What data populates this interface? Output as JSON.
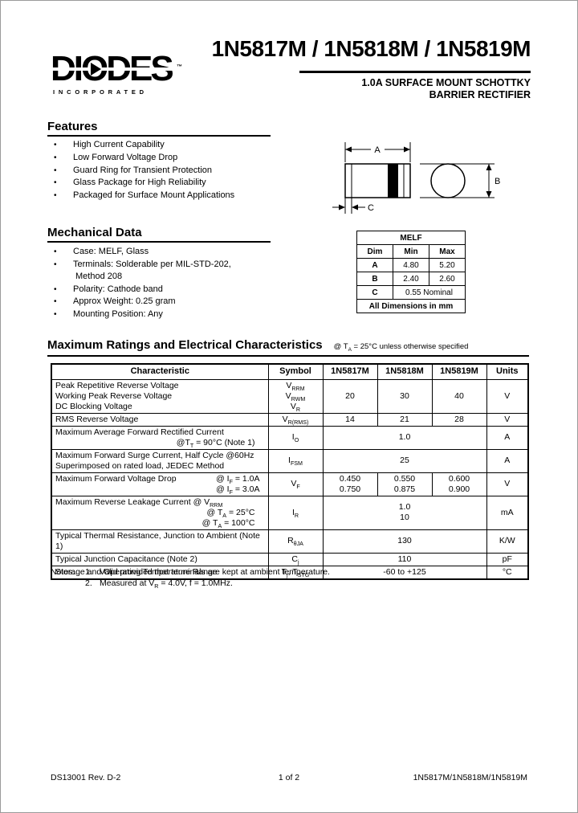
{
  "header": {
    "logo_text": "DIODES",
    "logo_tm": "™",
    "logo_sub": "INCORPORATED",
    "title": "1N5817M / 1N5818M / 1N5819M",
    "subtitle1": "1.0A SURFACE MOUNT SCHOTTKY",
    "subtitle2": "BARRIER RECTIFIER"
  },
  "features": {
    "heading": "Features",
    "items": [
      "High Current Capability",
      "Low Forward Voltage Drop",
      "Guard Ring for Transient Protection",
      "Glass Package for High Reliability",
      "Packaged for Surface Mount Applications"
    ]
  },
  "diagram": {
    "label_a": "A",
    "label_b": "B",
    "label_c": "C"
  },
  "mechanical": {
    "heading": "Mechanical Data",
    "items": [
      [
        "Case: MELF, Glass"
      ],
      [
        "Terminals: Solderable per MIL-STD-202,",
        "Method 208"
      ],
      [
        "Polarity: Cathode band"
      ],
      [
        "Approx Weight: 0.25 gram"
      ],
      [
        "Mounting Position: Any"
      ]
    ]
  },
  "melf_table": {
    "title": "MELF",
    "headers": [
      "Dim",
      "Min",
      "Max"
    ],
    "rows": [
      {
        "dim": "A",
        "min": "4.80",
        "max": "5.20"
      },
      {
        "dim": "B",
        "min": "2.40",
        "max": "2.60"
      },
      {
        "dim": "C",
        "span": "0.55 Nominal"
      }
    ],
    "footer": "All Dimensions in mm"
  },
  "ratings": {
    "heading": "Maximum Ratings and Electrical Characteristics",
    "condition": "@ T~A~ = 25°C unless otherwise specified",
    "headers": [
      "Characteristic",
      "Symbol",
      "1N5817M",
      "1N5818M",
      "1N5819M",
      "Units"
    ],
    "rows": [
      {
        "main": [
          "Peak Repetitive Reverse Voltage",
          "Working Peak Reverse Voltage",
          "DC Blocking Voltage"
        ],
        "symbol": [
          "V~RRM~",
          "V~RWM~",
          "V~R~"
        ],
        "values": [
          [
            "20"
          ],
          [
            "30"
          ],
          [
            "40"
          ]
        ],
        "units": "V"
      },
      {
        "main": [
          "RMS Reverse Voltage"
        ],
        "symbol": [
          "V~R(RMS)~"
        ],
        "values": [
          [
            "14"
          ],
          [
            "21"
          ],
          [
            "28"
          ]
        ],
        "units": "V"
      },
      {
        "main": [
          "Maximum Average Forward Rectified Current"
        ],
        "conds": [
          "@T~T~ = 90°C  (Note 1)"
        ],
        "symbol": [
          "I~O~"
        ],
        "span_value": [
          "1.0"
        ],
        "units": "A"
      },
      {
        "main": [
          "Maximum Forward Surge Current, Half Cycle @60Hz",
          "Superimposed on rated load, JEDEC Method"
        ],
        "symbol": [
          "I~FSM~"
        ],
        "span_value": [
          "25"
        ],
        "units": "A"
      },
      {
        "main": [
          "Maximum Forward Voltage Drop"
        ],
        "conds": [
          "@ I~F~ = 1.0A",
          "@ I~F~ = 3.0A"
        ],
        "float_layout": true,
        "symbol": [
          "V~F~"
        ],
        "values": [
          [
            "0.450",
            "0.750"
          ],
          [
            "0.550",
            "0.875"
          ],
          [
            "0.600",
            "0.900"
          ]
        ],
        "units": "V"
      },
      {
        "main": [
          "Maximum Reverse Leakage Current @ V~RRM~"
        ],
        "conds": [
          "@ T~A~ =  25°C",
          "@ T~A~ = 100°C"
        ],
        "symbol": [
          "I~R~"
        ],
        "span_value": [
          "1.0",
          "10"
        ],
        "units": "mA"
      },
      {
        "main": [
          "Typical Thermal Resistance, Junction to Ambient (Note 1)"
        ],
        "symbol": [
          "R~θJA~"
        ],
        "span_value": [
          "130"
        ],
        "units": "K/W"
      },
      {
        "main": [
          "Typical Junction Capacitance (Note 2)"
        ],
        "symbol": [
          "C~j~"
        ],
        "span_value": [
          "110"
        ],
        "units": "pF"
      },
      {
        "main": [
          "Storage and Operating Temperature Range"
        ],
        "symbol": [
          "T~j~, T~STG~"
        ],
        "span_value": [
          "-60 to +125"
        ],
        "units": "°C"
      }
    ]
  },
  "notes": {
    "label": "Notes:",
    "items": [
      {
        "num": "1.",
        "text": "Valid provided that terminals are kept at ambient temperature."
      },
      {
        "num": "2.",
        "text": "Measured at V~R~ = 4.0V, f = 1.0MHz."
      }
    ]
  },
  "footer": {
    "left": "DS13001 Rev. D-2",
    "center": "1 of 2",
    "right": "1N5817M/1N5818M/1N5819M"
  }
}
